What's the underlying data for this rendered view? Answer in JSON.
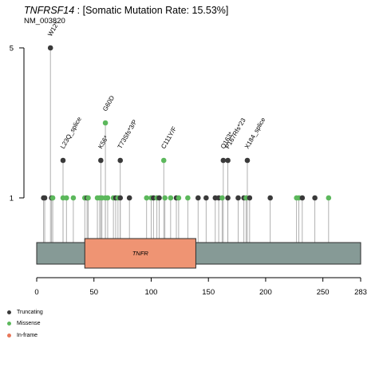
{
  "title": {
    "gene": "TNFRSF14",
    "rest": " : [Somatic Mutation Rate: 15.53%]"
  },
  "subtitle": "NM_003820",
  "colors": {
    "truncating": "#3a3a3a",
    "missense": "#5cb85c",
    "inframe": "#e8775a",
    "protein": "#869a96",
    "domain": "#ef9473",
    "stem": "#a8a8a8"
  },
  "legend": [
    {
      "label": "Truncating",
      "color": "#3a3a3a"
    },
    {
      "label": "Missense",
      "color": "#5cb85c"
    },
    {
      "label": "In-frame",
      "color": "#e8775a"
    }
  ],
  "chart_data": {
    "type": "lollipop",
    "protein_length": 283,
    "x_ticks": [
      0,
      50,
      100,
      150,
      200,
      250,
      283
    ],
    "y_ticks": [
      1,
      5
    ],
    "domains": [
      {
        "name": "TNFR",
        "start": 42,
        "end": 139
      }
    ],
    "labeled_mutations": [
      {
        "label": "W12*",
        "position": 12,
        "count": 5,
        "class": "Truncating"
      },
      {
        "label": "L23Q_splice",
        "position": 23,
        "count": 2,
        "class": "Truncating"
      },
      {
        "label": "K56*",
        "position": 56,
        "count": 2,
        "class": "Truncating"
      },
      {
        "label": "G60D",
        "position": 60,
        "count": 3,
        "class": "Missense"
      },
      {
        "label": "T73Sfs*3/P",
        "position": 73,
        "count": 2,
        "class": "Truncating"
      },
      {
        "label": "C111Y/F",
        "position": 111,
        "count": 2,
        "class": "Missense"
      },
      {
        "label": "Q163*",
        "position": 163,
        "count": 2,
        "class": "Truncating"
      },
      {
        "label": "P167Rfs*23",
        "position": 167,
        "count": 2,
        "class": "Truncating"
      },
      {
        "label": "X184_splice",
        "position": 184,
        "count": 2,
        "class": "Truncating"
      }
    ],
    "single_mutations": [
      {
        "position": 6,
        "class": "Truncating"
      },
      {
        "position": 7,
        "class": "Truncating"
      },
      {
        "position": 13,
        "class": "Truncating"
      },
      {
        "position": 14,
        "class": "Missense"
      },
      {
        "position": 23,
        "class": "Missense"
      },
      {
        "position": 26,
        "class": "Missense"
      },
      {
        "position": 32,
        "class": "Missense"
      },
      {
        "position": 42,
        "class": "Missense"
      },
      {
        "position": 44,
        "class": "Truncating"
      },
      {
        "position": 45,
        "class": "Missense"
      },
      {
        "position": 53,
        "class": "Missense"
      },
      {
        "position": 55,
        "class": "Missense"
      },
      {
        "position": 57,
        "class": "Missense"
      },
      {
        "position": 60,
        "class": "Missense"
      },
      {
        "position": 62,
        "class": "Missense"
      },
      {
        "position": 67,
        "class": "Missense"
      },
      {
        "position": 69,
        "class": "Truncating"
      },
      {
        "position": 71,
        "class": "Missense"
      },
      {
        "position": 73,
        "class": "Truncating"
      },
      {
        "position": 81,
        "class": "Truncating"
      },
      {
        "position": 96,
        "class": "Missense"
      },
      {
        "position": 100,
        "class": "Missense"
      },
      {
        "position": 102,
        "class": "Truncating"
      },
      {
        "position": 105,
        "class": "Missense"
      },
      {
        "position": 107,
        "class": "Truncating"
      },
      {
        "position": 112,
        "class": "Missense"
      },
      {
        "position": 117,
        "class": "Missense"
      },
      {
        "position": 122,
        "class": "Truncating"
      },
      {
        "position": 124,
        "class": "Missense"
      },
      {
        "position": 132,
        "class": "Missense"
      },
      {
        "position": 141,
        "class": "Truncating"
      },
      {
        "position": 148,
        "class": "Truncating"
      },
      {
        "position": 156,
        "class": "Truncating"
      },
      {
        "position": 159,
        "class": "Truncating"
      },
      {
        "position": 162,
        "class": "Missense"
      },
      {
        "position": 167,
        "class": "Truncating"
      },
      {
        "position": 176,
        "class": "Truncating"
      },
      {
        "position": 181,
        "class": "Truncating"
      },
      {
        "position": 183,
        "class": "Missense"
      },
      {
        "position": 186,
        "class": "Truncating"
      },
      {
        "position": 204,
        "class": "Truncating"
      },
      {
        "position": 227,
        "class": "Missense"
      },
      {
        "position": 229,
        "class": "Missense"
      },
      {
        "position": 232,
        "class": "Truncating"
      },
      {
        "position": 243,
        "class": "Truncating"
      },
      {
        "position": 255,
        "class": "Missense"
      }
    ]
  }
}
